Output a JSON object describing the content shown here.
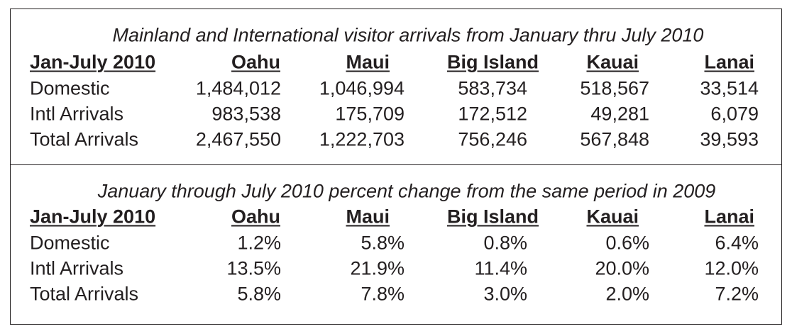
{
  "sections": [
    {
      "title": "Mainland and International visitor arrivals from January thru July 2010",
      "header": [
        "Jan-July 2010",
        "Oahu",
        "Maui",
        "Big Island",
        "Kauai",
        "Lanai"
      ],
      "rows": [
        [
          "Domestic",
          "1,484,012",
          "1,046,994",
          "583,734",
          "518,567",
          "33,514"
        ],
        [
          "Intl Arrivals",
          "983,538",
          "175,709",
          "172,512",
          "49,281",
          "6,079"
        ],
        [
          "Total Arrivals",
          "2,467,550",
          "1,222,703",
          "756,246",
          "567,848",
          "39,593"
        ]
      ]
    },
    {
      "title": "January through July 2010 percent change from the same period in 2009",
      "header": [
        "Jan-July 2010",
        "Oahu",
        "Maui",
        "Big Island",
        "Kauai",
        "Lanai"
      ],
      "rows": [
        [
          "Domestic",
          "1.2%",
          "5.8%",
          "0.8%",
          "0.6%",
          "6.4%"
        ],
        [
          "Intl Arrivals",
          "13.5%",
          "21.9%",
          "11.4%",
          "20.0%",
          "12.0%"
        ],
        [
          "Total Arrivals",
          "5.8%",
          "7.8%",
          "3.0%",
          "2.0%",
          "7.2%"
        ]
      ]
    }
  ]
}
